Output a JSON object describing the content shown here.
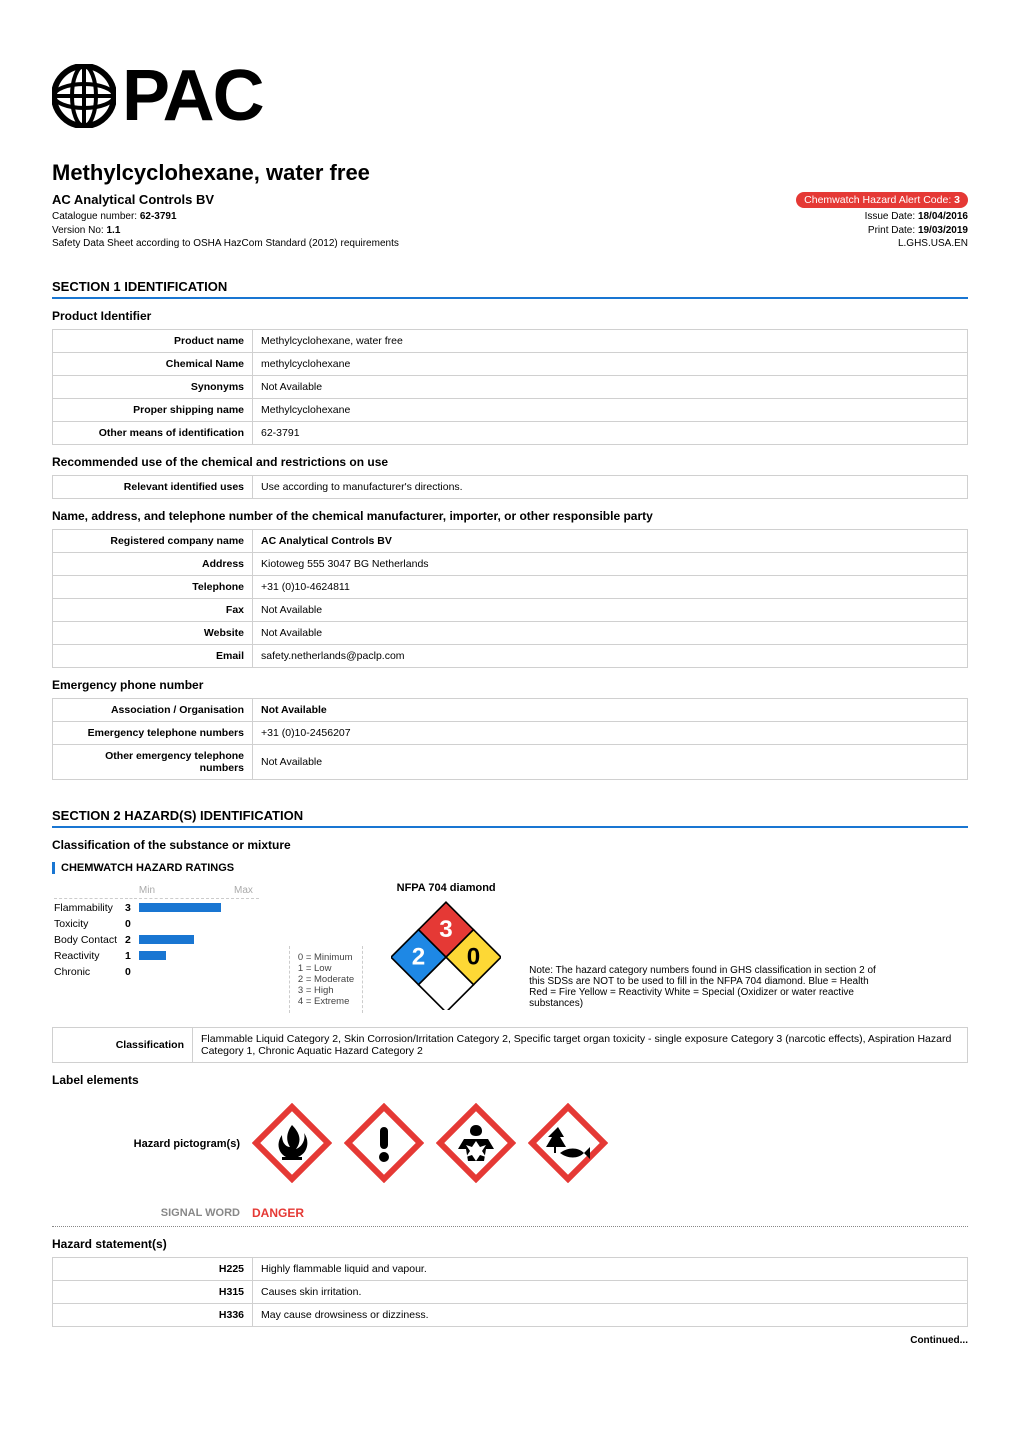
{
  "logo": {
    "text": "PAC"
  },
  "header": {
    "product_title": "Methylcyclohexane, water free",
    "company_name": "AC Analytical Controls BV",
    "hazard_badge_text": "Chemwatch Hazard Alert Code: ",
    "hazard_badge_code": "3",
    "catalogue_label": "Catalogue number: ",
    "catalogue_value": "62-3791",
    "version_label": "Version No: ",
    "version_value": "1.1",
    "sds_line": "Safety Data Sheet according to OSHA HazCom Standard (2012) requirements",
    "issue_label": "Issue Date: ",
    "issue_value": "18/04/2016",
    "print_label": "Print Date: ",
    "print_value": "19/03/2019",
    "locale": "L.GHS.USA.EN"
  },
  "section1": {
    "title": "SECTION 1 IDENTIFICATION",
    "product_identifier_heading": "Product Identifier",
    "rows": [
      {
        "k": "Product name",
        "v": "Methylcyclohexane, water free"
      },
      {
        "k": "Chemical Name",
        "v": "methylcyclohexane"
      },
      {
        "k": "Synonyms",
        "v": "Not Available"
      },
      {
        "k": "Proper shipping name",
        "v": "Methylcyclohexane"
      },
      {
        "k": "Other means of identification",
        "v": "62-3791"
      }
    ],
    "recommended_heading": "Recommended use of the chemical and restrictions on use",
    "recommended_row": {
      "k": "Relevant identified uses",
      "v": "Use according to manufacturer's directions."
    },
    "manufacturer_heading": "Name, address, and telephone number of the chemical manufacturer, importer, or other responsible party",
    "manufacturer_rows": [
      {
        "k": "Registered company name",
        "v": "AC Analytical Controls BV"
      },
      {
        "k": "Address",
        "v": "Kiotoweg 555 3047 BG Netherlands"
      },
      {
        "k": "Telephone",
        "v": "+31 (0)10-4624811"
      },
      {
        "k": "Fax",
        "v": "Not Available"
      },
      {
        "k": "Website",
        "v": "Not Available"
      },
      {
        "k": "Email",
        "v": "safety.netherlands@paclp.com"
      }
    ],
    "emergency_heading": "Emergency phone number",
    "emergency_rows": [
      {
        "k": "Association / Organisation",
        "v": "Not Available"
      },
      {
        "k": "Emergency telephone numbers",
        "v": "+31 (0)10-2456207"
      },
      {
        "k": "Other emergency telephone numbers",
        "v": "Not Available"
      }
    ]
  },
  "section2": {
    "title": "SECTION 2 HAZARD(S) IDENTIFICATION",
    "classification_heading": "Classification of the substance or mixture",
    "ratings_heading": "CHEMWATCH HAZARD RATINGS",
    "min_label": "Min",
    "max_label": "Max",
    "ratings": [
      {
        "label": "Flammability",
        "value": 3,
        "max": 4
      },
      {
        "label": "Toxicity",
        "value": 0,
        "max": 4
      },
      {
        "label": "Body Contact",
        "value": 2,
        "max": 4
      },
      {
        "label": "Reactivity",
        "value": 1,
        "max": 4
      },
      {
        "label": "Chronic",
        "value": 0,
        "max": 4
      }
    ],
    "legend": {
      "l0": "0 = Minimum",
      "l1": "1 = Low",
      "l2": "2 = Moderate",
      "l3": "3 = High",
      "l4": "4 = Extreme"
    },
    "nfpa": {
      "title": "NFPA 704 diamond",
      "fire": "3",
      "health": "2",
      "reactivity": "0",
      "special": "",
      "colors": {
        "fire": "#e53935",
        "health": "#1e88e5",
        "reactivity": "#fdd835",
        "special": "#ffffff",
        "border": "#000000"
      },
      "note": "Note: The hazard category numbers found in GHS classification in section 2 of this SDSs are NOT to be used to fill in the NFPA 704 diamond. Blue = Health Red = Fire Yellow = Reactivity White = Special (Oxidizer or water reactive substances)"
    },
    "classification_row": {
      "k": "Classification",
      "v": "Flammable Liquid Category 2, Skin Corrosion/Irritation Category 2, Specific target organ toxicity - single exposure Category 3 (narcotic effects), Aspiration Hazard Category 1, Chronic Aquatic Hazard Category 2"
    },
    "label_elements_heading": "Label elements",
    "pictogram_label": "Hazard pictogram(s)",
    "pictograms": [
      "flame-pictogram",
      "exclamation-pictogram",
      "health-hazard-pictogram",
      "environment-pictogram"
    ],
    "pictogram_colors": {
      "border": "#e53935",
      "fill": "#ffffff",
      "symbol": "#000000"
    },
    "signal_label": "SIGNAL WORD",
    "signal_word": "DANGER",
    "hazard_statements_heading": "Hazard statement(s)",
    "hazard_statements": [
      {
        "k": "H225",
        "v": "Highly flammable liquid and vapour."
      },
      {
        "k": "H315",
        "v": "Causes skin irritation."
      },
      {
        "k": "H336",
        "v": "May cause drowsiness or dizziness."
      }
    ]
  },
  "continued": "Continued..."
}
